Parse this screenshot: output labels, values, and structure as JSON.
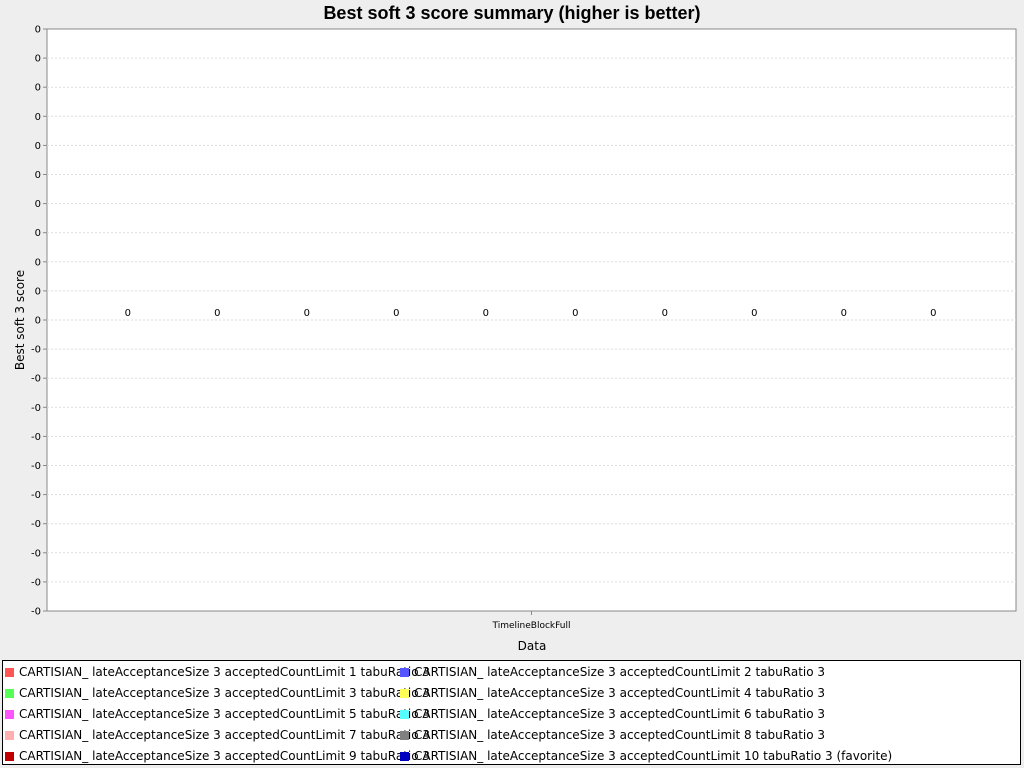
{
  "chart_data": {
    "type": "bar",
    "title": "Best soft 3 score summary (higher is better)",
    "xlabel": "Data",
    "ylabel": "Best soft 3 score",
    "categories": [
      "TimelineBlockFull"
    ],
    "y_tick_labels": [
      "0",
      "0",
      "0",
      "0",
      "0",
      "0",
      "0",
      "0",
      "0",
      "0",
      "0",
      "-0",
      "-0",
      "-0",
      "-0",
      "-0",
      "-0",
      "-0",
      "-0",
      "-0",
      "-0"
    ],
    "grid": true,
    "legend_position": "bottom",
    "series": [
      {
        "name": "CARTISIAN_ lateAcceptanceSize 3 acceptedCountLimit 1 tabuRatio 3",
        "values": [
          0
        ],
        "value_labels": [
          "0"
        ],
        "color": "#ff5555"
      },
      {
        "name": "CARTISIAN_ lateAcceptanceSize 3 acceptedCountLimit 2 tabuRatio 3",
        "values": [
          0
        ],
        "value_labels": [
          "0"
        ],
        "color": "#5555ff"
      },
      {
        "name": "CARTISIAN_ lateAcceptanceSize 3 acceptedCountLimit 3 tabuRatio 3",
        "values": [
          0
        ],
        "value_labels": [
          "0"
        ],
        "color": "#55ff55"
      },
      {
        "name": "CARTISIAN_ lateAcceptanceSize 3 acceptedCountLimit 4 tabuRatio 3",
        "values": [
          0
        ],
        "value_labels": [
          "0"
        ],
        "color": "#ffff55"
      },
      {
        "name": "CARTISIAN_ lateAcceptanceSize 3 acceptedCountLimit 5 tabuRatio 3",
        "values": [
          0
        ],
        "value_labels": [
          "0"
        ],
        "color": "#ff55ff"
      },
      {
        "name": "CARTISIAN_ lateAcceptanceSize 3 acceptedCountLimit 6 tabuRatio 3",
        "values": [
          0
        ],
        "value_labels": [
          "0"
        ],
        "color": "#55ffff"
      },
      {
        "name": "CARTISIAN_ lateAcceptanceSize 3 acceptedCountLimit 7 tabuRatio 3",
        "values": [
          0
        ],
        "value_labels": [
          "0"
        ],
        "color": "#ffafaf"
      },
      {
        "name": "CARTISIAN_ lateAcceptanceSize 3 acceptedCountLimit 8 tabuRatio 3",
        "values": [
          0
        ],
        "value_labels": [
          "0"
        ],
        "color": "#808080"
      },
      {
        "name": "CARTISIAN_ lateAcceptanceSize 3 acceptedCountLimit 9 tabuRatio 3",
        "values": [
          0
        ],
        "value_labels": [
          "0"
        ],
        "color": "#c00000"
      },
      {
        "name": "CARTISIAN_ lateAcceptanceSize 3 acceptedCountLimit 10 tabuRatio 3 (favorite)",
        "values": [
          0
        ],
        "value_labels": [
          "0"
        ],
        "color": "#0000c0"
      }
    ]
  }
}
